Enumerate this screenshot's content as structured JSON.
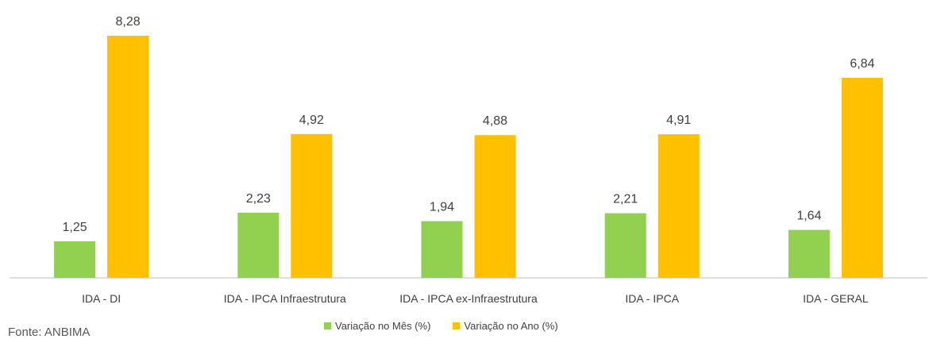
{
  "source": "Fonte: ANBIMA",
  "colors": {
    "mes": "#92D050",
    "ano": "#FFC000",
    "axis": "#bfbfbf"
  },
  "chart_data": {
    "type": "bar",
    "title": "",
    "xlabel": "",
    "ylabel": "",
    "categories": [
      "IDA - DI",
      "IDA - IPCA Infraestrutura",
      "IDA - IPCA ex-Infraestrutura",
      "IDA - IPCA",
      "IDA - GERAL"
    ],
    "series": [
      {
        "name": "Variação no Mês (%)",
        "values": [
          1.25,
          2.23,
          1.94,
          2.21,
          1.64
        ],
        "labels": [
          "1,25",
          "2,23",
          "1,94",
          "2,21",
          "1,64"
        ]
      },
      {
        "name": "Variação no Ano (%)",
        "values": [
          8.28,
          4.92,
          4.88,
          4.91,
          6.84
        ],
        "labels": [
          "8,28",
          "4,92",
          "4,88",
          "4,91",
          "6,84"
        ]
      }
    ],
    "ylim": [
      0,
      8.28
    ],
    "grid": false,
    "legend": "bottom"
  }
}
